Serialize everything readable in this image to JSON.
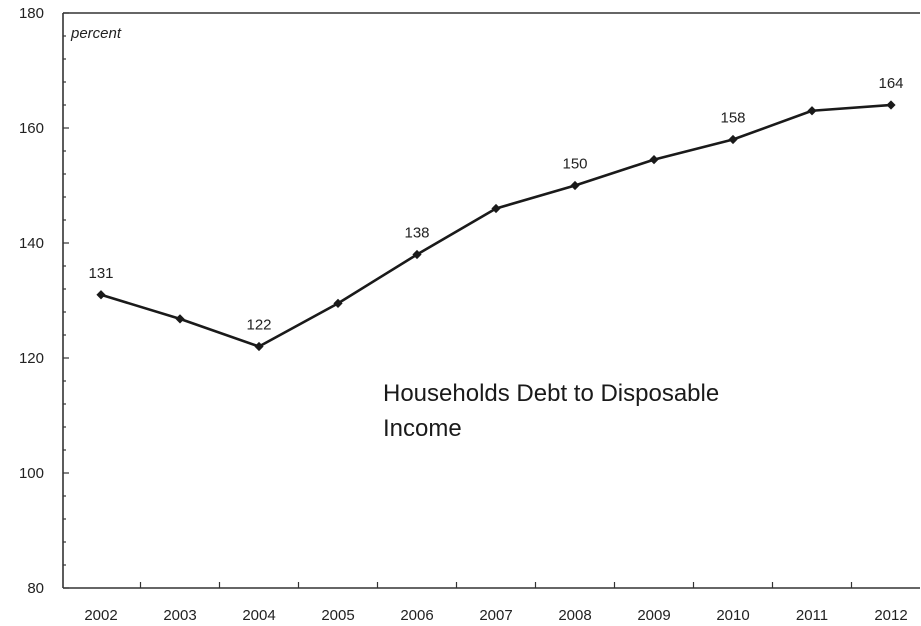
{
  "chart_data": {
    "type": "line",
    "title": "",
    "xlabel": "",
    "ylabel": "",
    "unit_label": "percent",
    "annotation": [
      "Households Debt to Disposable",
      "Income"
    ],
    "x": [
      "2002",
      "2003",
      "2004",
      "2005",
      "2006",
      "2007",
      "2008",
      "2009",
      "2010",
      "2011",
      "2012"
    ],
    "series": [
      {
        "values": [
          131,
          126.8,
          122,
          129.5,
          138,
          146,
          150,
          154.5,
          158,
          163,
          164
        ]
      }
    ],
    "data_labels": [
      {
        "index": 0,
        "text": "131"
      },
      {
        "index": 2,
        "text": "122"
      },
      {
        "index": 4,
        "text": "138"
      },
      {
        "index": 6,
        "text": "150"
      },
      {
        "index": 8,
        "text": "158"
      },
      {
        "index": 10,
        "text": "164"
      }
    ],
    "ylim": [
      80,
      180
    ],
    "yticks": [
      80,
      100,
      120,
      140,
      160,
      180
    ],
    "grid": false,
    "legend": "none",
    "line_color": "#1a1a1a",
    "axis_color": "#333333"
  }
}
